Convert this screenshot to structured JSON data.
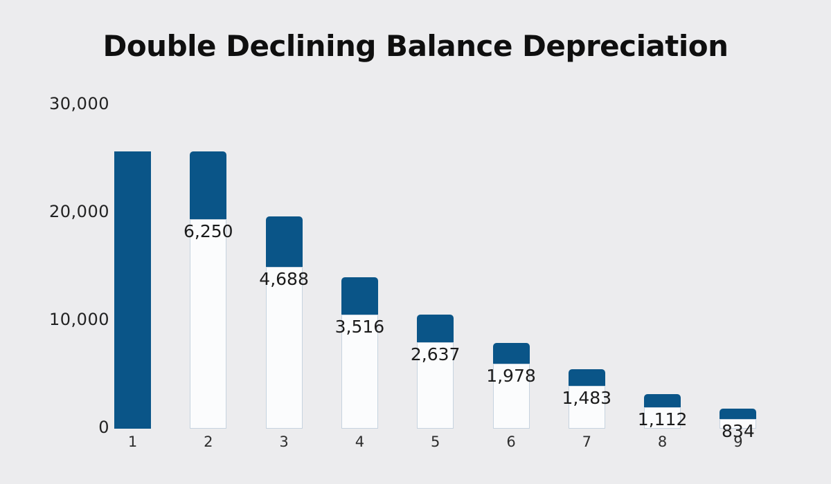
{
  "chart_data": {
    "type": "bar",
    "variant": "waterfall-depreciation",
    "title": "Double Declining Balance Depreciation",
    "background_color": "#ececee",
    "bar_color": "#0a5588",
    "remainder_fill": "#fbfcfd",
    "remainder_border_color": "#c6d3df",
    "grid": false,
    "legend": false,
    "ylim": [
      0,
      30000
    ],
    "y_ticks": [
      {
        "value": 30000,
        "label": "30,000"
      },
      {
        "value": 20000,
        "label": "20,000"
      },
      {
        "value": 10000,
        "label": "10,000"
      },
      {
        "value": 0,
        "label": "0"
      }
    ],
    "categories": [
      "1",
      "2",
      "3",
      "4",
      "5",
      "6",
      "7",
      "8",
      "9"
    ],
    "bars": [
      {
        "category": "1",
        "segment_top": 25600,
        "segment_bottom": 0,
        "solid": true,
        "value_label": "",
        "depreciation": null
      },
      {
        "category": "2",
        "segment_top": 25600,
        "segment_bottom": 19300,
        "solid": false,
        "value_label": "6,250",
        "depreciation": 6250
      },
      {
        "category": "3",
        "segment_top": 19550,
        "segment_bottom": 14850,
        "solid": false,
        "value_label": "4,688",
        "depreciation": 4688
      },
      {
        "category": "4",
        "segment_top": 13900,
        "segment_bottom": 10420,
        "solid": false,
        "value_label": "3,516",
        "depreciation": 3516
      },
      {
        "category": "5",
        "segment_top": 10420,
        "segment_bottom": 7860,
        "solid": false,
        "value_label": "2,637",
        "depreciation": 2637
      },
      {
        "category": "6",
        "segment_top": 7800,
        "segment_bottom": 5870,
        "solid": false,
        "value_label": "1,978",
        "depreciation": 1978
      },
      {
        "category": "7",
        "segment_top": 5360,
        "segment_bottom": 3820,
        "solid": false,
        "value_label": "1,483",
        "depreciation": 1483
      },
      {
        "category": "8",
        "segment_top": 3050,
        "segment_bottom": 1830,
        "solid": false,
        "value_label": "1,112",
        "depreciation": 1112
      },
      {
        "category": "9",
        "segment_top": 1700,
        "segment_bottom": 740,
        "solid": false,
        "value_label": "834",
        "depreciation": 834
      }
    ]
  }
}
